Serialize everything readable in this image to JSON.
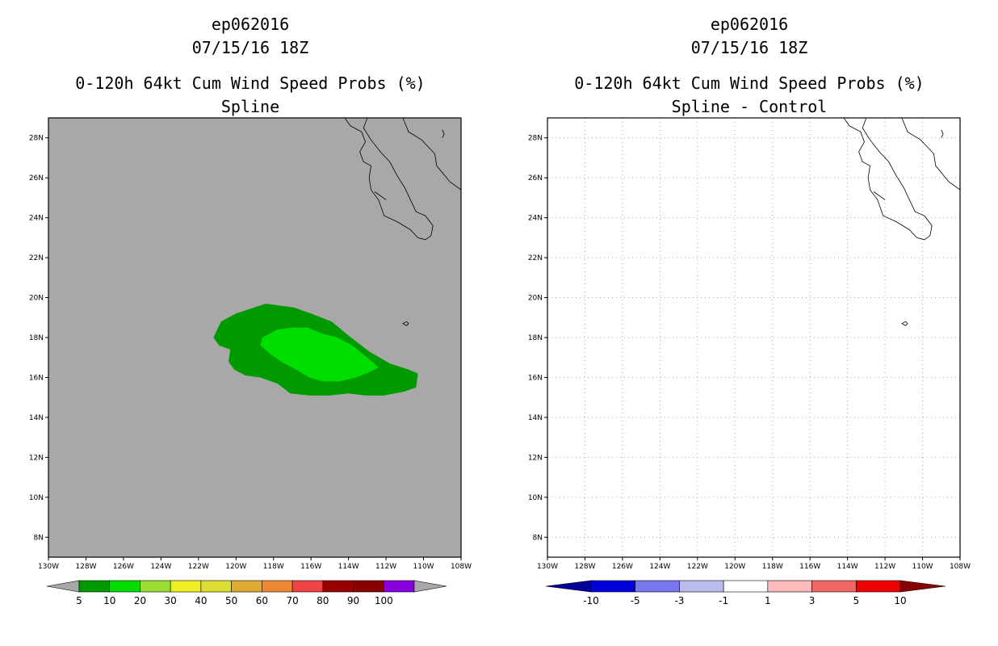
{
  "chart_data": [
    {
      "type": "contour-map",
      "title_lines": [
        "ep062016",
        "07/15/16 18Z",
        "0-120h 64kt Cum Wind Speed Probs (%)",
        "Spline"
      ],
      "background_color": "#a8a8a8",
      "grid": false,
      "xlim": [
        -130,
        -108
      ],
      "ylim": [
        7,
        29
      ],
      "x_ticks": [
        -130,
        -128,
        -126,
        -124,
        -122,
        -120,
        -118,
        -116,
        -114,
        -112,
        -110,
        -108
      ],
      "x_tick_labels": [
        "130W",
        "128W",
        "126W",
        "124W",
        "122W",
        "120W",
        "118W",
        "116W",
        "114W",
        "112W",
        "110W",
        "108W"
      ],
      "y_ticks": [
        8,
        10,
        12,
        14,
        16,
        18,
        20,
        22,
        24,
        26,
        28
      ],
      "y_tick_labels": [
        "8N",
        "10N",
        "12N",
        "14N",
        "16N",
        "18N",
        "20N",
        "22N",
        "24N",
        "26N",
        "28N"
      ],
      "contours": [
        {
          "level": "5-10",
          "color": "#009900",
          "polygon": [
            [
              -121.2,
              18.0
            ],
            [
              -120.8,
              18.8
            ],
            [
              -120.0,
              19.2
            ],
            [
              -118.4,
              19.7
            ],
            [
              -117.7,
              19.6
            ],
            [
              -116.9,
              19.5
            ],
            [
              -116.0,
              19.2
            ],
            [
              -114.9,
              18.8
            ],
            [
              -114.0,
              18.1
            ],
            [
              -112.9,
              17.3
            ],
            [
              -111.8,
              16.7
            ],
            [
              -110.8,
              16.4
            ],
            [
              -110.3,
              16.2
            ],
            [
              -110.4,
              15.5
            ],
            [
              -111.0,
              15.3
            ],
            [
              -112.1,
              15.1
            ],
            [
              -113.1,
              15.1
            ],
            [
              -114.0,
              15.2
            ],
            [
              -115.0,
              15.1
            ],
            [
              -116.1,
              15.1
            ],
            [
              -117.1,
              15.2
            ],
            [
              -117.8,
              15.7
            ],
            [
              -118.7,
              16.0
            ],
            [
              -119.5,
              16.1
            ],
            [
              -120.1,
              16.4
            ],
            [
              -120.4,
              16.8
            ],
            [
              -120.3,
              17.4
            ],
            [
              -120.9,
              17.6
            ],
            [
              -121.2,
              18.0
            ]
          ]
        },
        {
          "level": "10-20",
          "color": "#00dd00",
          "polygon": [
            [
              -118.6,
              18.0
            ],
            [
              -117.8,
              18.4
            ],
            [
              -117.0,
              18.5
            ],
            [
              -116.2,
              18.5
            ],
            [
              -115.4,
              18.2
            ],
            [
              -114.6,
              18.0
            ],
            [
              -113.8,
              17.6
            ],
            [
              -113.0,
              17.0
            ],
            [
              -112.4,
              16.5
            ],
            [
              -112.8,
              16.3
            ],
            [
              -113.6,
              16.0
            ],
            [
              -114.5,
              15.8
            ],
            [
              -115.4,
              15.8
            ],
            [
              -116.1,
              16.0
            ],
            [
              -116.8,
              16.4
            ],
            [
              -117.6,
              16.8
            ],
            [
              -118.2,
              17.2
            ],
            [
              -118.7,
              17.6
            ],
            [
              -118.6,
              18.0
            ]
          ]
        }
      ],
      "colorbar": {
        "values": [
          "5",
          "10",
          "20",
          "30",
          "40",
          "50",
          "60",
          "70",
          "80",
          "90",
          "100"
        ],
        "colors": [
          "#009900",
          "#00dd00",
          "#99dd33",
          "#eeee22",
          "#dddd33",
          "#ddaa33",
          "#ee8833",
          "#ee4444",
          "#990000",
          "#880000",
          "#8800dd"
        ],
        "below_color": "#a8a8a8",
        "above_color": "#a8a8a8"
      }
    },
    {
      "type": "contour-map",
      "title_lines": [
        "ep062016",
        "07/15/16 18Z",
        "0-120h 64kt Cum Wind Speed Probs (%)",
        "Spline - Control"
      ],
      "background_color": "#ffffff",
      "grid": true,
      "xlim": [
        -130,
        -108
      ],
      "ylim": [
        7,
        29
      ],
      "x_ticks": [
        -130,
        -128,
        -126,
        -124,
        -122,
        -120,
        -118,
        -116,
        -114,
        -112,
        -110,
        -108
      ],
      "x_tick_labels": [
        "130W",
        "128W",
        "126W",
        "124W",
        "122W",
        "120W",
        "118W",
        "116W",
        "114W",
        "112W",
        "110W",
        "108W"
      ],
      "y_ticks": [
        8,
        10,
        12,
        14,
        16,
        18,
        20,
        22,
        24,
        26,
        28
      ],
      "y_tick_labels": [
        "8N",
        "10N",
        "12N",
        "14N",
        "16N",
        "18N",
        "20N",
        "22N",
        "24N",
        "26N",
        "28N"
      ],
      "contours": [],
      "colorbar": {
        "values": [
          "-10",
          "-5",
          "-3",
          "-1",
          "1",
          "3",
          "5",
          "10"
        ],
        "colors": [
          "#0000dd",
          "#7777ee",
          "#bbbbee",
          "#ffffff",
          "#ffbbbb",
          "#ee6666",
          "#ee0000"
        ],
        "below_color": "#000099",
        "above_color": "#880000"
      }
    }
  ],
  "coastline": [
    [
      [
        -114.2,
        29.0
      ],
      [
        -113.9,
        28.6
      ],
      [
        -113.3,
        28.3
      ],
      [
        -113.1,
        27.8
      ],
      [
        -113.4,
        27.3
      ],
      [
        -113.2,
        26.8
      ],
      [
        -112.8,
        26.6
      ],
      [
        -112.9,
        26.0
      ],
      [
        -112.8,
        25.4
      ],
      [
        -112.4,
        24.9
      ],
      [
        -112.1,
        24.1
      ],
      [
        -111.4,
        23.8
      ],
      [
        -110.7,
        23.4
      ],
      [
        -110.3,
        23.0
      ],
      [
        -109.9,
        22.9
      ],
      [
        -109.6,
        23.1
      ],
      [
        -109.5,
        23.6
      ],
      [
        -109.9,
        24.1
      ],
      [
        -110.4,
        24.3
      ],
      [
        -110.7,
        24.9
      ],
      [
        -111.0,
        25.5
      ],
      [
        -111.4,
        26.1
      ],
      [
        -111.8,
        26.8
      ],
      [
        -112.3,
        27.3
      ],
      [
        -112.8,
        27.9
      ],
      [
        -113.2,
        28.5
      ],
      [
        -113.0,
        29.0
      ]
    ],
    [
      [
        -111.1,
        29.0
      ],
      [
        -110.8,
        28.3
      ],
      [
        -110.1,
        27.9
      ],
      [
        -109.4,
        27.2
      ],
      [
        -109.3,
        26.6
      ],
      [
        -108.6,
        25.8
      ],
      [
        -108.0,
        25.4
      ]
    ],
    [
      [
        -112.6,
        25.3
      ],
      [
        -112.0,
        24.9
      ]
    ],
    [
      [
        -110.9,
        18.8
      ],
      [
        -111.1,
        18.7
      ],
      [
        -110.9,
        18.6
      ],
      [
        -110.8,
        18.7
      ],
      [
        -110.9,
        18.8
      ]
    ],
    [
      [
        -109.0,
        28.4
      ],
      [
        -108.9,
        28.2
      ],
      [
        -109.0,
        28.0
      ]
    ]
  ]
}
